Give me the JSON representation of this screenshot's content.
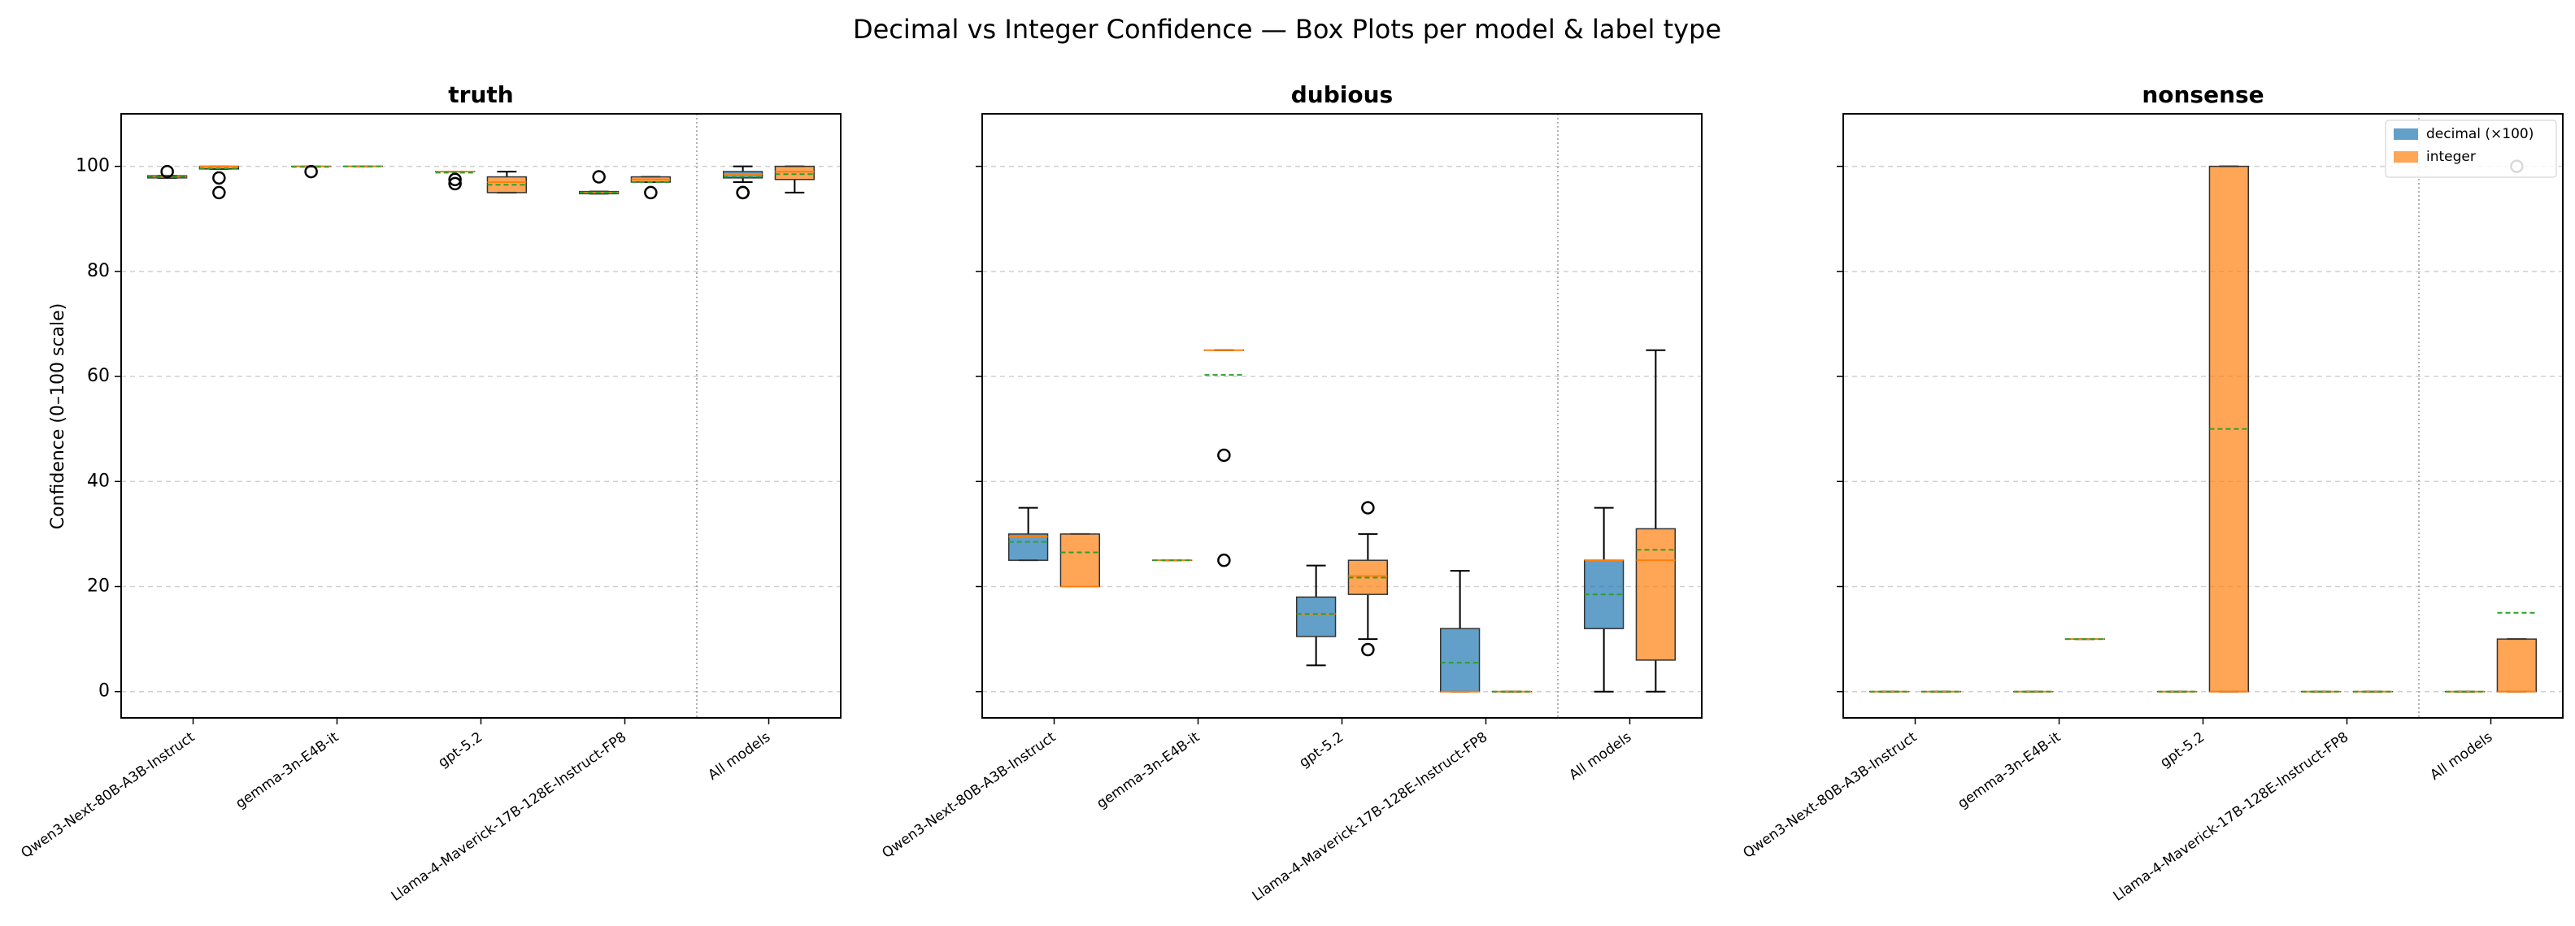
{
  "figure": {
    "title": "Decimal vs Integer Confidence — Box Plots per model & label type",
    "ylabel": "Confidence (0–100 scale)"
  },
  "chart_data": [
    {
      "type": "box",
      "title": "truth",
      "categories": [
        "Qwen3-Next-80B-A3B-Instruct",
        "gemma-3n-E4B-it",
        "gpt-5.2",
        "Llama-4-Maverick-17B-128E-Instruct-FP8",
        "All models"
      ],
      "ylim": [
        -5,
        110
      ],
      "yticks": [
        0,
        20,
        40,
        60,
        80,
        100
      ],
      "grid": true,
      "median_color": "#ff7f0e",
      "mean_color": "#2ca02c",
      "series": [
        {
          "name": "decimal (×100)",
          "color": "#1f77b4",
          "boxes": [
            {
              "whislo": 97.8,
              "q1": 97.8,
              "med": 98,
              "q3": 98.2,
              "whishi": 98.2,
              "mean": 98,
              "fliers": [
                99
              ]
            },
            {
              "whislo": 100,
              "q1": 100,
              "med": 100,
              "q3": 100,
              "whishi": 100,
              "mean": 99.9,
              "fliers": [
                99
              ]
            },
            {
              "whislo": 99,
              "q1": 99,
              "med": 99,
              "q3": 99,
              "whishi": 99,
              "mean": 98.8,
              "fliers": [
                97.5,
                96.7
              ]
            },
            {
              "whislo": 94.8,
              "q1": 94.8,
              "med": 95,
              "q3": 95.2,
              "whishi": 95.2,
              "mean": 95,
              "fliers": [
                98
              ]
            },
            {
              "whislo": 97,
              "q1": 97.8,
              "med": 98.5,
              "q3": 99,
              "whishi": 100,
              "mean": 98,
              "fliers": [
                95,
                95
              ]
            }
          ]
        },
        {
          "name": "integer",
          "color": "#ff7f0e",
          "boxes": [
            {
              "whislo": 99.5,
              "q1": 99.5,
              "med": 100,
              "q3": 100,
              "whishi": 100,
              "mean": 99.6,
              "fliers": [
                97.8,
                95
              ]
            },
            {
              "whislo": 100,
              "q1": 100,
              "med": 100,
              "q3": 100,
              "whishi": 100,
              "mean": 100,
              "fliers": []
            },
            {
              "whislo": 95,
              "q1": 95,
              "med": 97,
              "q3": 98,
              "whishi": 99,
              "mean": 96.5,
              "fliers": []
            },
            {
              "whislo": 97,
              "q1": 97,
              "med": 97.5,
              "q3": 98,
              "whishi": 98,
              "mean": 97,
              "fliers": [
                95
              ]
            },
            {
              "whislo": 95,
              "q1": 97.5,
              "med": 99,
              "q3": 100,
              "whishi": 100,
              "mean": 98.5,
              "fliers": []
            }
          ]
        }
      ]
    },
    {
      "type": "box",
      "title": "dubious",
      "categories": [
        "Qwen3-Next-80B-A3B-Instruct",
        "gemma-3n-E4B-it",
        "gpt-5.2",
        "Llama-4-Maverick-17B-128E-Instruct-FP8",
        "All models"
      ],
      "ylim": [
        -5,
        110
      ],
      "yticks": [
        0,
        20,
        40,
        60,
        80,
        100
      ],
      "grid": true,
      "median_color": "#ff7f0e",
      "mean_color": "#2ca02c",
      "series": [
        {
          "name": "decimal (×100)",
          "color": "#1f77b4",
          "boxes": [
            {
              "whislo": 25,
              "q1": 25,
              "med": 29.5,
              "q3": 30,
              "whishi": 35,
              "mean": 28.5,
              "fliers": []
            },
            {
              "whislo": 25,
              "q1": 25,
              "med": 25,
              "q3": 25,
              "whishi": 25,
              "mean": 25,
              "fliers": []
            },
            {
              "whislo": 5,
              "q1": 10.5,
              "med": 14.8,
              "q3": 18,
              "whishi": 24,
              "mean": 14.8,
              "fliers": []
            },
            {
              "whislo": 0,
              "q1": 0,
              "med": 0,
              "q3": 12,
              "whishi": 23,
              "mean": 5.5,
              "fliers": []
            },
            {
              "whislo": 0,
              "q1": 12,
              "med": 25,
              "q3": 25,
              "whishi": 35,
              "mean": 18.5,
              "fliers": []
            }
          ]
        },
        {
          "name": "integer",
          "color": "#ff7f0e",
          "boxes": [
            {
              "whislo": 20,
              "q1": 20,
              "med": 20,
              "q3": 30,
              "whishi": 30,
              "mean": 26.5,
              "fliers": []
            },
            {
              "whislo": 65,
              "q1": 65,
              "med": 65,
              "q3": 65,
              "whishi": 65,
              "mean": 60.3,
              "fliers": [
                45,
                25
              ]
            },
            {
              "whislo": 10,
              "q1": 18.5,
              "med": 22,
              "q3": 25,
              "whishi": 30,
              "mean": 21.7,
              "fliers": [
                35,
                8
              ]
            },
            {
              "whislo": 0,
              "q1": 0,
              "med": 0,
              "q3": 0,
              "whishi": 0,
              "mean": 0,
              "fliers": []
            },
            {
              "whislo": 0,
              "q1": 6,
              "med": 25,
              "q3": 31,
              "whishi": 65,
              "mean": 27,
              "fliers": []
            }
          ]
        }
      ]
    },
    {
      "type": "box",
      "title": "nonsense",
      "categories": [
        "Qwen3-Next-80B-A3B-Instruct",
        "gemma-3n-E4B-it",
        "gpt-5.2",
        "Llama-4-Maverick-17B-128E-Instruct-FP8",
        "All models"
      ],
      "ylim": [
        -5,
        110
      ],
      "yticks": [
        0,
        20,
        40,
        60,
        80,
        100
      ],
      "grid": true,
      "legend": "upper right",
      "median_color": "#ff7f0e",
      "mean_color": "#2ca02c",
      "series": [
        {
          "name": "decimal (×100)",
          "color": "#1f77b4",
          "boxes": [
            {
              "whislo": 0,
              "q1": 0,
              "med": 0,
              "q3": 0,
              "whishi": 0,
              "mean": 0,
              "fliers": []
            },
            {
              "whislo": 0,
              "q1": 0,
              "med": 0,
              "q3": 0,
              "whishi": 0,
              "mean": 0,
              "fliers": []
            },
            {
              "whislo": 0,
              "q1": 0,
              "med": 0,
              "q3": 0,
              "whishi": 0,
              "mean": 0,
              "fliers": []
            },
            {
              "whislo": 0,
              "q1": 0,
              "med": 0,
              "q3": 0,
              "whishi": 0,
              "mean": 0,
              "fliers": []
            },
            {
              "whislo": 0,
              "q1": 0,
              "med": 0,
              "q3": 0,
              "whishi": 0,
              "mean": 0,
              "fliers": []
            }
          ]
        },
        {
          "name": "integer",
          "color": "#ff7f0e",
          "boxes": [
            {
              "whislo": 0,
              "q1": 0,
              "med": 0,
              "q3": 0,
              "whishi": 0,
              "mean": 0,
              "fliers": []
            },
            {
              "whislo": 10,
              "q1": 10,
              "med": 10,
              "q3": 10,
              "whishi": 10,
              "mean": 10,
              "fliers": []
            },
            {
              "whislo": 0,
              "q1": 0,
              "med": 0,
              "q3": 100,
              "whishi": 100,
              "mean": 50,
              "fliers": []
            },
            {
              "whislo": 0,
              "q1": 0,
              "med": 0,
              "q3": 0,
              "whishi": 0,
              "mean": 0,
              "fliers": []
            },
            {
              "whislo": 0,
              "q1": 0,
              "med": 0,
              "q3": 10,
              "whishi": 10,
              "mean": 15,
              "fliers": [
                100
              ]
            }
          ]
        }
      ]
    }
  ]
}
